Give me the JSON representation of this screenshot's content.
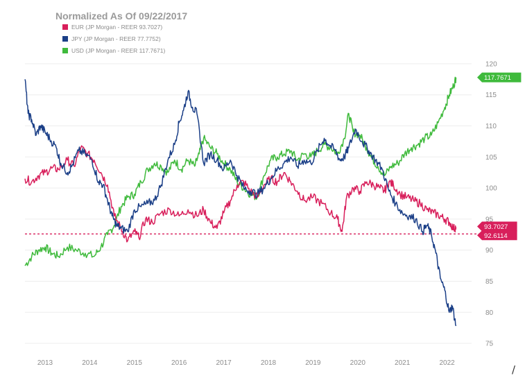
{
  "chart_data": {
    "type": "line",
    "title": "Normalized As Of 09/22/2017",
    "ylim": [
      74,
      122
    ],
    "yticks": [
      75,
      80,
      85,
      90,
      95,
      100,
      105,
      110,
      115,
      120
    ],
    "ytick_labels": [
      "75",
      "80",
      "85",
      "90",
      "95",
      "100",
      "105",
      "110",
      "115",
      "120"
    ],
    "xlim": [
      2012.55,
      2022.55
    ],
    "xticks": [
      2013,
      2014,
      2015,
      2016,
      2017,
      2018,
      2019,
      2020,
      2021,
      2022
    ],
    "xtick_labels": [
      "2013",
      "2014",
      "2015",
      "2016",
      "2017",
      "2018",
      "2019",
      "2020",
      "2021",
      "2022"
    ],
    "grid": true,
    "legend_position": "top-left",
    "reference_line": {
      "value": 92.6114,
      "label": "92.6114",
      "color": "#d81f5b",
      "style": "dashed"
    },
    "series": [
      {
        "name": "EUR (JP Morgan - REER 93.7027)",
        "color": "#d81f5b",
        "last_label": "93.7027",
        "x": [
          2012.55,
          2012.7,
          2012.85,
          2013.0,
          2013.15,
          2013.3,
          2013.5,
          2013.65,
          2013.8,
          2013.95,
          2014.1,
          2014.25,
          2014.4,
          2014.55,
          2014.7,
          2014.85,
          2015.0,
          2015.1,
          2015.25,
          2015.4,
          2015.6,
          2015.8,
          2016.0,
          2016.2,
          2016.4,
          2016.55,
          2016.7,
          2016.85,
          2017.0,
          2017.15,
          2017.3,
          2017.45,
          2017.6,
          2017.75,
          2017.9,
          2018.05,
          2018.2,
          2018.35,
          2018.5,
          2018.65,
          2018.8,
          2019.0,
          2019.2,
          2019.4,
          2019.55,
          2019.65,
          2019.75,
          2019.9,
          2020.05,
          2020.2,
          2020.35,
          2020.5,
          2020.6,
          2020.7,
          2020.8,
          2020.95,
          2021.1,
          2021.25,
          2021.4,
          2021.55,
          2021.7,
          2021.85,
          2021.95,
          2022.05,
          2022.15,
          2022.2
        ],
        "values": [
          101.5,
          101.0,
          102.0,
          102.5,
          103.2,
          103.0,
          104.5,
          103.5,
          106.5,
          105.5,
          104.5,
          102.5,
          100.5,
          95.5,
          93.5,
          91.5,
          93.0,
          92.0,
          95.0,
          94.5,
          96.0,
          96.5,
          95.5,
          96.5,
          95.5,
          96.5,
          94.5,
          93.5,
          96.0,
          98.0,
          100.5,
          101.0,
          99.5,
          98.5,
          100.5,
          101.5,
          101.0,
          102.5,
          101.0,
          99.5,
          98.0,
          98.5,
          97.5,
          96.0,
          95.0,
          93.0,
          98.5,
          100.0,
          99.5,
          101.0,
          100.5,
          100.0,
          99.5,
          101.0,
          100.5,
          99.0,
          98.5,
          98.0,
          97.5,
          96.5,
          96.0,
          95.5,
          95.0,
          94.5,
          93.5,
          93.7
        ]
      },
      {
        "name": "JPY (JP Morgan - REER 77.7752)",
        "color": "#1b3f87",
        "last_label": "",
        "x": [
          2012.55,
          2012.62,
          2012.7,
          2012.8,
          2012.9,
          2013.0,
          2013.1,
          2013.25,
          2013.35,
          2013.5,
          2013.6,
          2013.75,
          2013.9,
          2014.05,
          2014.2,
          2014.3,
          2014.4,
          2014.5,
          2014.6,
          2014.7,
          2014.85,
          2015.0,
          2015.15,
          2015.3,
          2015.45,
          2015.6,
          2015.75,
          2015.9,
          2016.0,
          2016.1,
          2016.2,
          2016.3,
          2016.4,
          2016.55,
          2016.7,
          2016.85,
          2017.0,
          2017.15,
          2017.3,
          2017.45,
          2017.6,
          2017.75,
          2017.9,
          2018.05,
          2018.2,
          2018.35,
          2018.5,
          2018.65,
          2018.8,
          2018.95,
          2019.1,
          2019.25,
          2019.35,
          2019.5,
          2019.6,
          2019.7,
          2019.8,
          2019.95,
          2020.1,
          2020.25,
          2020.4,
          2020.55,
          2020.7,
          2020.85,
          2021.0,
          2021.15,
          2021.3,
          2021.45,
          2021.55,
          2021.65,
          2021.75,
          2021.85,
          2021.95,
          2022.05,
          2022.12,
          2022.2
        ],
        "values": [
          117.5,
          112.0,
          111.0,
          108.5,
          110.0,
          109.0,
          108.0,
          106.5,
          104.0,
          102.5,
          103.5,
          106.0,
          105.5,
          104.5,
          101.0,
          100.5,
          98.0,
          95.5,
          94.0,
          93.5,
          93.0,
          96.5,
          97.0,
          97.5,
          98.0,
          100.5,
          104.5,
          107.0,
          110.5,
          112.5,
          115.5,
          113.0,
          112.0,
          104.0,
          105.5,
          104.5,
          103.0,
          104.5,
          102.0,
          100.0,
          99.5,
          99.0,
          100.0,
          101.5,
          103.0,
          104.0,
          105.0,
          103.5,
          104.5,
          104.0,
          106.0,
          108.0,
          107.0,
          106.0,
          104.5,
          105.0,
          106.5,
          109.5,
          107.5,
          106.0,
          104.5,
          103.0,
          99.5,
          97.5,
          96.0,
          95.5,
          95.0,
          93.0,
          94.0,
          92.5,
          89.5,
          85.5,
          83.5,
          80.0,
          81.0,
          77.8
        ]
      },
      {
        "name": "USD (JP Morgan - REER 117.7671)",
        "color": "#3fba3c",
        "last_label": "117.7671",
        "x": [
          2012.55,
          2012.7,
          2012.85,
          2013.0,
          2013.15,
          2013.3,
          2013.5,
          2013.7,
          2013.9,
          2014.1,
          2014.25,
          2014.4,
          2014.55,
          2014.7,
          2014.85,
          2015.0,
          2015.15,
          2015.3,
          2015.45,
          2015.6,
          2015.75,
          2015.9,
          2016.05,
          2016.2,
          2016.35,
          2016.45,
          2016.55,
          2016.7,
          2016.85,
          2017.0,
          2017.15,
          2017.3,
          2017.45,
          2017.6,
          2017.75,
          2017.9,
          2018.05,
          2018.2,
          2018.35,
          2018.5,
          2018.65,
          2018.8,
          2018.95,
          2019.1,
          2019.25,
          2019.4,
          2019.55,
          2019.7,
          2019.8,
          2019.9,
          2020.05,
          2020.2,
          2020.3,
          2020.45,
          2020.6,
          2020.75,
          2020.9,
          2021.05,
          2021.2,
          2021.35,
          2021.5,
          2021.65,
          2021.8,
          2021.95,
          2022.05,
          2022.15,
          2022.2
        ],
        "values": [
          87.5,
          89.0,
          90.0,
          90.5,
          89.5,
          89.0,
          90.5,
          90.0,
          89.5,
          89.0,
          90.5,
          92.5,
          94.0,
          97.0,
          98.5,
          99.0,
          101.0,
          103.0,
          104.0,
          103.5,
          102.5,
          104.5,
          103.0,
          104.5,
          103.5,
          105.5,
          108.0,
          106.5,
          105.5,
          104.0,
          103.0,
          101.0,
          100.0,
          99.0,
          98.5,
          102.0,
          104.5,
          105.0,
          105.5,
          106.0,
          104.5,
          105.5,
          105.0,
          106.0,
          107.0,
          106.5,
          105.5,
          108.0,
          112.0,
          109.0,
          108.5,
          106.5,
          105.0,
          103.5,
          102.0,
          103.5,
          104.0,
          105.5,
          106.5,
          107.0,
          108.0,
          108.5,
          110.5,
          113.0,
          115.0,
          116.5,
          117.8
        ]
      }
    ]
  },
  "footer": {
    "corner_mark": "/"
  }
}
